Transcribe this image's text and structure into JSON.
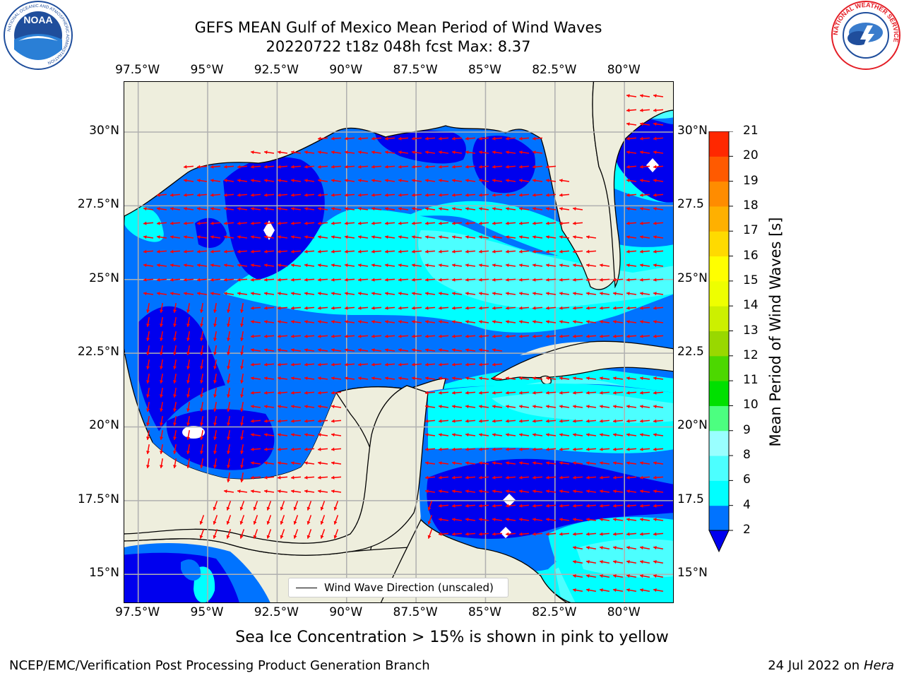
{
  "title_line1": "GEFS MEAN Gulf of Mexico Mean Period of Wind Waves",
  "title_line2": "20220722 t18z 048h fcst   Max: 8.37",
  "logos": {
    "left": {
      "name": "NOAA",
      "text": "NOAA",
      "ring_text": "NATIONAL OCEANIC AND ATMOSPHERIC ADMINISTRATION",
      "color": "#1f4e9c"
    },
    "right": {
      "name": "National Weather Service",
      "ring_text": "NATIONAL WEATHER SERVICE",
      "color": "#e41e26"
    }
  },
  "legend": {
    "label": "Wind Wave Direction (unscaled)"
  },
  "colorbar": {
    "label": "Mean Period of Wind Waves [s]",
    "ticks": [
      "2",
      "4",
      "6",
      "8",
      "9",
      "10",
      "11",
      "12",
      "13",
      "14",
      "15",
      "16",
      "17",
      "18",
      "19",
      "20",
      "21"
    ],
    "colors": [
      "#0073ff",
      "#00ffff",
      "#4cffff",
      "#99ffff",
      "#4cff80",
      "#00e000",
      "#4cd800",
      "#99d800",
      "#ccf000",
      "#eeff00",
      "#ffff00",
      "#ffda00",
      "#ffb000",
      "#ff8c00",
      "#ff5a00",
      "#ff2800",
      "#ff0000"
    ],
    "under_color": "#0000ee"
  },
  "note": "Sea Ice Concentration > 15% is shown in pink to yellow",
  "footer_left": "NCEP/EMC/Verification Post Processing Product Generation Branch",
  "footer_right_date": "24 Jul 2022 on ",
  "footer_right_host": "Hera",
  "chart_data": {
    "type": "heatmap",
    "title": "GEFS MEAN Gulf of Mexico Mean Period of Wind Waves",
    "subtitle": "20220722 t18z 048h fcst   Max: 8.37",
    "lon_range": [
      -98.0,
      -78.2
    ],
    "lat_range": [
      14.0,
      31.7
    ],
    "x_ticks": [
      "97.5°W",
      "95°W",
      "92.5°W",
      "90°W",
      "87.5°W",
      "85°W",
      "82.5°W",
      "80°W"
    ],
    "x_tick_values": [
      -97.5,
      -95.0,
      -92.5,
      -90.0,
      -87.5,
      -85.0,
      -82.5,
      -80.0
    ],
    "y_ticks": [
      "30°N",
      "27.5°N",
      "25°N",
      "22.5°N",
      "20°N",
      "17.5°N",
      "15°N"
    ],
    "y_tick_values": [
      30.0,
      27.5,
      25.0,
      22.5,
      20.0,
      17.5,
      15.0
    ],
    "right_y_ticks": [
      "30°N",
      "27.5",
      "25°N",
      "22.5",
      "20°N",
      "17.5",
      "15°N"
    ],
    "grid": true,
    "levels": [
      2,
      4,
      6,
      8,
      9,
      10,
      11,
      12,
      13,
      14,
      15,
      16,
      17,
      18,
      19,
      20,
      21
    ],
    "max_value": 8.37,
    "colors": {
      "land": "#eeeedd",
      "grid": "#b0b0b0",
      "arrow": "#ff0000",
      "coast": "#000000"
    },
    "regions": [
      {
        "level": "2-4",
        "color": "#0073ff",
        "desc": "most of Gulf shelf & western Caribbean"
      },
      {
        "level": "<2",
        "color": "#0000ee",
        "desc": "NW Gulf, Bay of Campeche, Gulf of Honduras, NE Gulf coast"
      },
      {
        "level": "4-6",
        "color": "#00ffff",
        "desc": "central/southern Gulf band, Straits of Florida, Yucatan Channel"
      },
      {
        "level": "6-8",
        "color": "#4cffff",
        "desc": "Straits of Florida and NW Caribbean patches"
      }
    ],
    "legend": "Wind Wave Direction (unscaled)",
    "arrows": {
      "description": "red unscaled direction arrows, predominantly pointing west over the Gulf and southward along the western Gulf coast"
    }
  }
}
